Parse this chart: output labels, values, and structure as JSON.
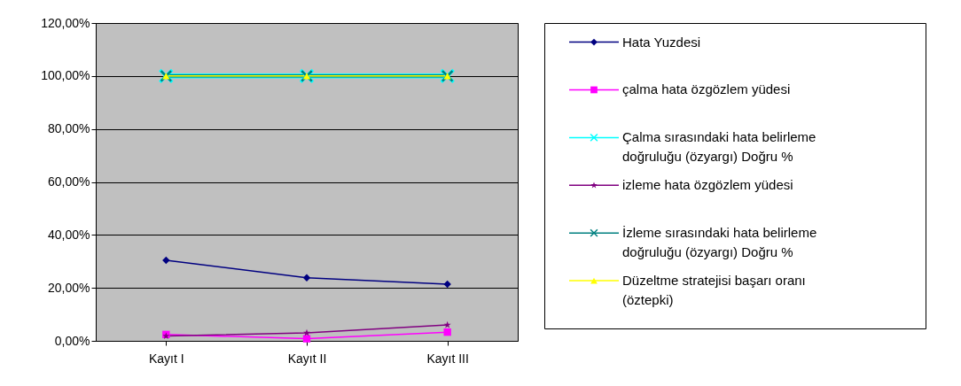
{
  "chart_data": {
    "type": "line",
    "categories": [
      "Kayıt I",
      "Kayıt II",
      "Kayıt III"
    ],
    "series": [
      {
        "name": "Hata Yuzdesi",
        "color": "#000080",
        "marker": "diamond",
        "values": [
          30.4,
          23.8,
          21.4
        ]
      },
      {
        "name": " çalma hata özgözlem yüdesi",
        "color": "#ff00ff",
        "marker": "square",
        "values": [
          2.4,
          0.8,
          3.3
        ]
      },
      {
        "name": "Çalma sırasındaki hata belirleme doğruluğu (özyargı) Doğru %",
        "color": "#00ffff",
        "marker": "cross",
        "values": [
          100,
          100,
          100
        ]
      },
      {
        "name": " izleme hata özgözlem yüdesi",
        "color": "#800080",
        "marker": "star",
        "values": [
          1.8,
          3.0,
          6.0
        ]
      },
      {
        "name": "İzleme sırasındaki hata belirleme doğruluğu (özyargı) Doğru %",
        "color": "#008080",
        "marker": "cross",
        "values": [
          100,
          100,
          100
        ]
      },
      {
        "name": "Düzeltme stratejisi başarı oranı (öztepki)",
        "color": "#ffff00",
        "marker": "triangle",
        "values": [
          100,
          100,
          100
        ]
      }
    ],
    "ylim": [
      0,
      120
    ],
    "yticks": [
      {
        "value": 0,
        "label": "0,00%"
      },
      {
        "value": 20,
        "label": "20,00%"
      },
      {
        "value": 40,
        "label": "40,00%"
      },
      {
        "value": 60,
        "label": "60,00%"
      },
      {
        "value": 80,
        "label": "80,00%"
      },
      {
        "value": 100,
        "label": "100,00%"
      },
      {
        "value": 120,
        "label": "120,00%"
      }
    ],
    "grid": "y",
    "legend": "right"
  }
}
